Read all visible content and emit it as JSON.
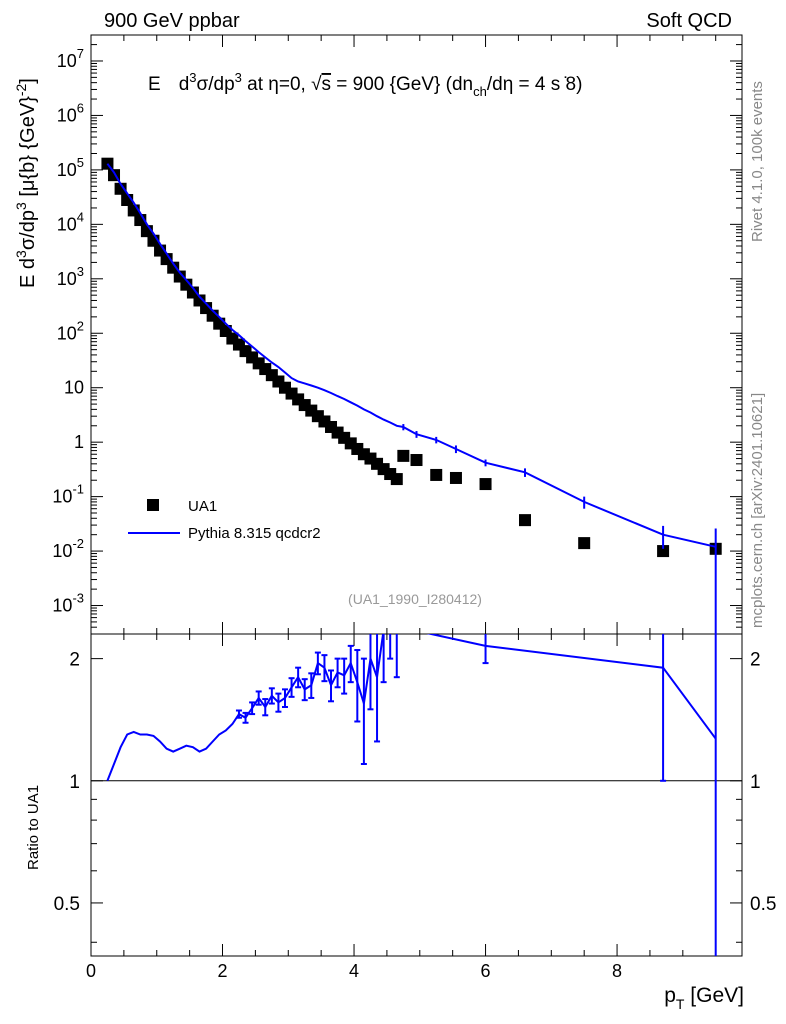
{
  "header": {
    "left": "900 GeV ppbar",
    "right": "Soft QCD"
  },
  "side_labels": {
    "rivet": "Rivet 4.1.0,  100k events",
    "mcplots": "mcplots.cern.ch [arXiv:2401.10621]"
  },
  "colors": {
    "data": "#000000",
    "mc": "#0000ff",
    "watermark": "#999999",
    "side": "#888888"
  },
  "chart_data": {
    "type": "scatter",
    "title": "E  d³σ/dp³ at η=0, √s = 900 {GeV} (dn_ch/dη = 4 s ̇8)",
    "title_parts": {
      "a": "E",
      "b": "d",
      "c": "3",
      "d": "σ/dp",
      "e": "3",
      "f": " at η=0, ",
      "g": "√",
      "h": "s",
      "i": " = 900 {GeV} (dn",
      "j": "ch",
      "k": "/dη = 4 s ̇8)"
    },
    "ylabel_parts": {
      "a": "E d",
      "b": "3",
      "c": "σ/dp",
      "d": "3",
      "e": " [μ{b} {GeV}",
      "f": "-2",
      "g": "]"
    },
    "xlabel_parts": {
      "a": "p",
      "b": "T",
      "c": " [GeV]"
    },
    "ratio_ylabel": "Ratio to UA1",
    "analysis_tag": "(UA1_1990_I280412)",
    "xlim": [
      0,
      9.9
    ],
    "ylim": [
      0.0003,
      30000000
    ],
    "ratio_ylim": [
      0.37,
      2.3
    ],
    "xticks": [
      0,
      2,
      4,
      6,
      8
    ],
    "yticks_main": [
      {
        "v": 10000000,
        "base": "10",
        "exp": "7"
      },
      {
        "v": 1000000,
        "base": "10",
        "exp": "6"
      },
      {
        "v": 100000,
        "base": "10",
        "exp": "5"
      },
      {
        "v": 10000,
        "base": "10",
        "exp": "4"
      },
      {
        "v": 1000,
        "base": "10",
        "exp": "3"
      },
      {
        "v": 100,
        "base": "10",
        "exp": "2"
      },
      {
        "v": 10,
        "base": "10",
        "exp": ""
      },
      {
        "v": 1,
        "base": "1",
        "exp": ""
      },
      {
        "v": 0.1,
        "base": "10",
        "exp": "-1"
      },
      {
        "v": 0.01,
        "base": "10",
        "exp": "-2"
      },
      {
        "v": 0.001,
        "base": "10",
        "exp": "-3"
      }
    ],
    "yticks_ratio": [
      {
        "v": 2,
        "label": "2"
      },
      {
        "v": 1,
        "label": "1"
      },
      {
        "v": 0.5,
        "label": "0.5"
      }
    ],
    "legend": [
      {
        "name": "UA1",
        "style": "square"
      },
      {
        "name": "Pythia 8.315 qcdcr2",
        "style": "line"
      }
    ],
    "series": [
      {
        "name": "UA1",
        "x": [
          0.25,
          0.35,
          0.45,
          0.55,
          0.65,
          0.75,
          0.85,
          0.95,
          1.05,
          1.15,
          1.25,
          1.35,
          1.45,
          1.55,
          1.65,
          1.75,
          1.85,
          1.95,
          2.05,
          2.15,
          2.25,
          2.35,
          2.45,
          2.55,
          2.65,
          2.75,
          2.85,
          2.95,
          3.05,
          3.15,
          3.25,
          3.35,
          3.45,
          3.55,
          3.65,
          3.75,
          3.85,
          3.95,
          4.05,
          4.15,
          4.25,
          4.35,
          4.45,
          4.55,
          4.65,
          4.75,
          4.95,
          5.25,
          5.55,
          6.0,
          6.6,
          7.5,
          8.7,
          9.5
        ],
        "y": [
          130000,
          80000,
          45000,
          28000,
          18000,
          12000,
          7500,
          5000,
          3300,
          2300,
          1600,
          1100,
          780,
          560,
          400,
          290,
          210,
          150,
          110,
          80,
          62,
          47,
          36,
          28,
          22,
          17,
          13,
          10,
          7.8,
          6.1,
          4.8,
          3.8,
          3.0,
          2.4,
          1.9,
          1.5,
          1.2,
          0.95,
          0.75,
          0.6,
          0.5,
          0.4,
          0.32,
          0.26,
          0.21,
          0.56,
          0.47,
          0.25,
          0.22,
          0.17,
          0.037,
          0.014,
          0.01,
          0.011
        ]
      },
      {
        "name": "Pythia 8.315 qcdcr2",
        "x": [
          0.25,
          0.35,
          0.45,
          0.55,
          0.65,
          0.75,
          0.85,
          0.95,
          1.05,
          1.15,
          1.25,
          1.35,
          1.45,
          1.55,
          1.65,
          1.75,
          1.85,
          1.95,
          2.05,
          2.15,
          2.25,
          2.35,
          2.45,
          2.55,
          2.65,
          2.75,
          2.85,
          2.95,
          3.05,
          3.15,
          3.25,
          3.35,
          3.45,
          3.55,
          3.65,
          3.75,
          3.85,
          3.95,
          4.05,
          4.15,
          4.25,
          4.35,
          4.45,
          4.55,
          4.65,
          4.75,
          4.95,
          5.25,
          5.55,
          6.0,
          6.6,
          7.5,
          8.7,
          9.5
        ],
        "y": [
          130000,
          90000,
          55000,
          37000,
          25000,
          16000,
          10000,
          6800,
          4400,
          2900,
          1900,
          1300,
          950,
          680,
          470,
          350,
          260,
          200,
          150,
          115,
          92,
          72,
          57,
          45,
          36,
          29,
          24,
          19,
          15,
          13,
          12,
          11,
          10,
          9,
          8,
          7,
          6.2,
          5.4,
          4.7,
          4.0,
          3.5,
          3.0,
          2.6,
          2.3,
          2.0,
          1.9,
          1.4,
          1.1,
          0.75,
          0.42,
          0.28,
          0.08,
          0.02,
          0.012
        ],
        "yerr": [
          0,
          0,
          0,
          0,
          0,
          0,
          0,
          0,
          0,
          0,
          0,
          0,
          0,
          0,
          0,
          0,
          0,
          0,
          0,
          0,
          0,
          0,
          0,
          0,
          0,
          0,
          0,
          0,
          0,
          0,
          0,
          0,
          0,
          0,
          0,
          0,
          0,
          0,
          0,
          0,
          0,
          0,
          0,
          0,
          0,
          0.25,
          0.2,
          0.15,
          0.12,
          0.06,
          0.05,
          0.02,
          0.009,
          0.014
        ]
      }
    ],
    "ratio": {
      "x": [
        0.25,
        0.35,
        0.45,
        0.55,
        0.65,
        0.75,
        0.85,
        0.95,
        1.05,
        1.15,
        1.25,
        1.35,
        1.45,
        1.55,
        1.65,
        1.75,
        1.85,
        1.95,
        2.05,
        2.15,
        2.25,
        2.35,
        2.45,
        2.55,
        2.65,
        2.75,
        2.85,
        2.95,
        3.05,
        3.15,
        3.25,
        3.35,
        3.45,
        3.55,
        3.65,
        3.75,
        3.85,
        3.95,
        4.05,
        4.15,
        4.25,
        4.35,
        4.45,
        4.55,
        4.65,
        6.0,
        8.7,
        9.5
      ],
      "y": [
        1.0,
        1.1,
        1.21,
        1.3,
        1.32,
        1.3,
        1.3,
        1.29,
        1.25,
        1.2,
        1.18,
        1.2,
        1.22,
        1.21,
        1.18,
        1.2,
        1.25,
        1.3,
        1.33,
        1.38,
        1.46,
        1.43,
        1.51,
        1.6,
        1.52,
        1.62,
        1.56,
        1.6,
        1.7,
        1.8,
        1.68,
        1.72,
        1.95,
        1.9,
        1.72,
        1.85,
        1.82,
        1.95,
        1.75,
        1.55,
        2.0,
        1.8,
        2.35,
        2.6,
        2.4,
        2.15,
        1.9,
        1.27
      ],
      "err": [
        0,
        0,
        0,
        0,
        0,
        0,
        0,
        0,
        0,
        0,
        0,
        0,
        0,
        0,
        0,
        0,
        0,
        0,
        0,
        0,
        0.03,
        0.04,
        0.05,
        0.06,
        0.07,
        0.07,
        0.08,
        0.08,
        0.09,
        0.1,
        0.1,
        0.12,
        0.12,
        0.14,
        0.15,
        0.15,
        0.18,
        0.2,
        0.35,
        0.45,
        0.5,
        0.55,
        0.6,
        0.6,
        0.6,
        0.2,
        0.9,
        1.1
      ]
    }
  }
}
